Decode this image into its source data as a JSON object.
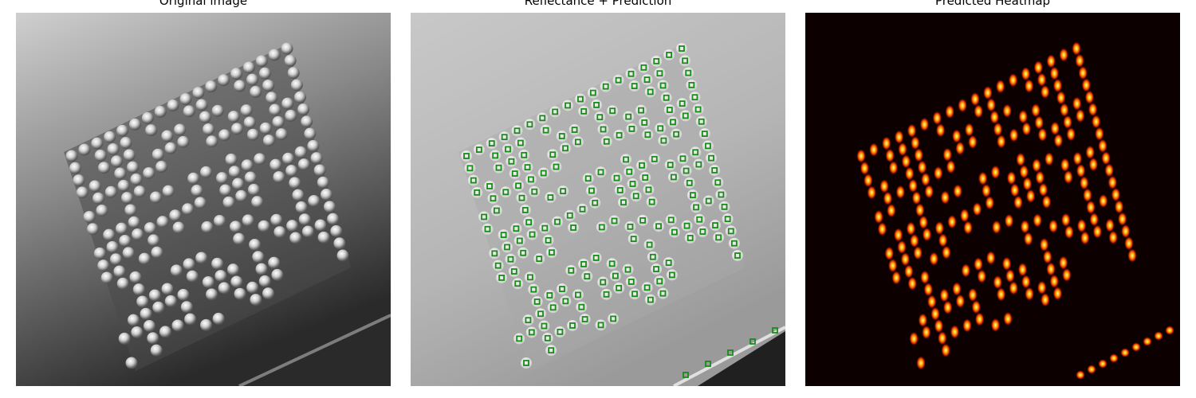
{
  "panels": [
    {
      "title": "Original image"
    },
    {
      "title": "Reflectance + Prediction"
    },
    {
      "title": "Predicted Heatmap"
    }
  ],
  "colors": {
    "marker": "#1a8a1a",
    "heat_hot": "#fff6b0",
    "heat_mid": "#ff5a00",
    "heat_bg": "#0d0000"
  },
  "content": {
    "subject": "dot-peen data matrix code on metal surface",
    "marker_shape": "square outline",
    "colormap": "hot"
  }
}
